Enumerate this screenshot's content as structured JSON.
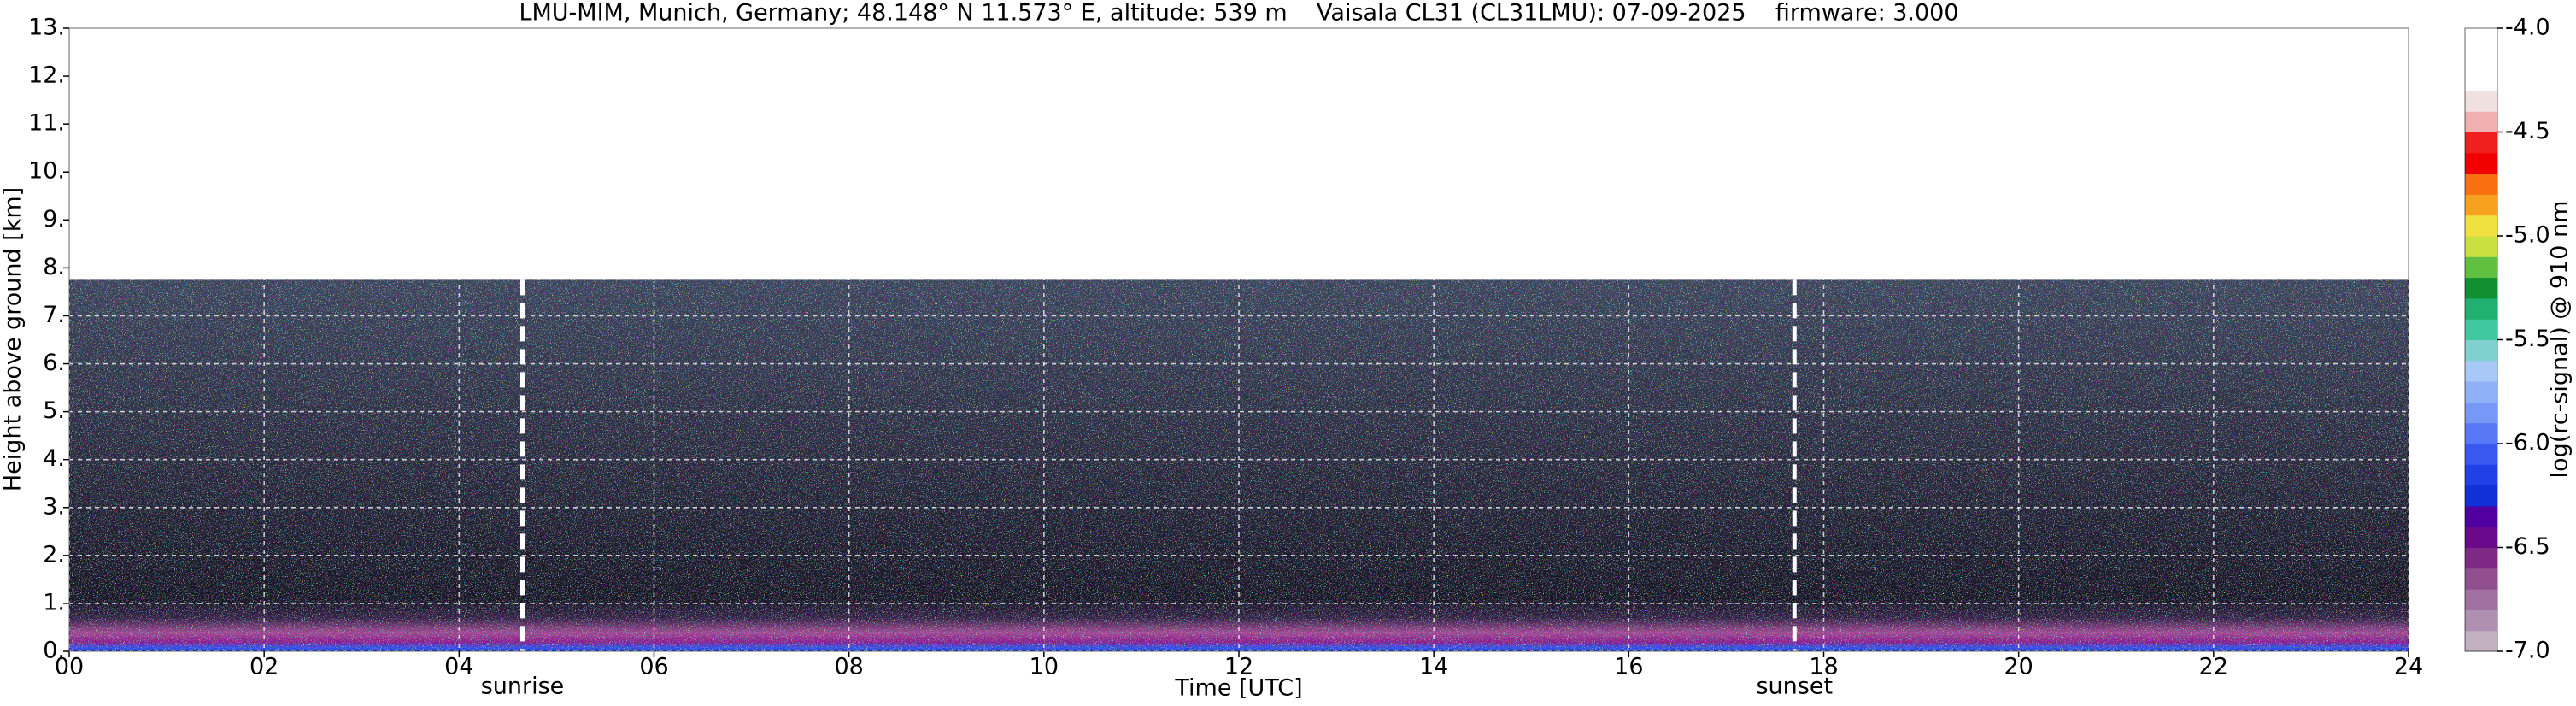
{
  "chart_data": {
    "type": "heatmap",
    "title": "LMU-MIM, Munich, Germany; 48.148° N 11.573° E, altitude: 539 m    Vaisala CL31 (CL31LMU): 07-09-2025    firmware: 3.000",
    "x_label": "Time [UTC]",
    "y_label": "Height above ground [km]",
    "xlim": [
      0,
      24
    ],
    "xticks": [
      {
        "value": 0,
        "label": "00"
      },
      {
        "value": 2,
        "label": "02"
      },
      {
        "value": 4,
        "label": "04"
      },
      {
        "value": 6,
        "label": "06"
      },
      {
        "value": 8,
        "label": "08"
      },
      {
        "value": 10,
        "label": "10"
      },
      {
        "value": 12,
        "label": "12"
      },
      {
        "value": 14,
        "label": "14"
      },
      {
        "value": 16,
        "label": "16"
      },
      {
        "value": 18,
        "label": "18"
      },
      {
        "value": 20,
        "label": "20"
      },
      {
        "value": 22,
        "label": "22"
      },
      {
        "value": 24,
        "label": "24"
      }
    ],
    "ylim": [
      0,
      13
    ],
    "yticks": [
      {
        "value": 0,
        "label": "0."
      },
      {
        "value": 1,
        "label": "1."
      },
      {
        "value": 2,
        "label": "2."
      },
      {
        "value": 3,
        "label": "3."
      },
      {
        "value": 4,
        "label": "4."
      },
      {
        "value": 5,
        "label": "5."
      },
      {
        "value": 6,
        "label": "6."
      },
      {
        "value": 7,
        "label": "7."
      },
      {
        "value": 8,
        "label": "8."
      },
      {
        "value": 9,
        "label": "9."
      },
      {
        "value": 10,
        "label": "10."
      },
      {
        "value": 11,
        "label": "11."
      },
      {
        "value": 12,
        "label": "12."
      },
      {
        "value": 13,
        "label": "13."
      }
    ],
    "grid": true,
    "max_range": 7.75,
    "annotations": [
      {
        "label": "sunrise",
        "x": 4.65
      },
      {
        "label": "sunset",
        "x": 17.7
      }
    ],
    "colorbar": {
      "label": "log(rc-signal) @ 910 nm",
      "lim": [
        -7,
        -4
      ],
      "ticks": [
        {
          "value": -7,
          "label": "-7.0"
        },
        {
          "value": -6.5,
          "label": "-6.5"
        },
        {
          "value": -6,
          "label": "-6.0"
        },
        {
          "value": -5.5,
          "label": "-5.5"
        },
        {
          "value": -5,
          "label": "-5.0"
        },
        {
          "value": -4.5,
          "label": "-4.5"
        },
        {
          "value": -4,
          "label": "-4.0"
        }
      ],
      "colors": [
        "#c0b0c0",
        "#b090b0",
        "#a070a0",
        "#905090",
        "#7e2a84",
        "#6a0a8a",
        "#5000a0",
        "#1030d8",
        "#2040e8",
        "#3858f0",
        "#5878f8",
        "#7898f8",
        "#90b0f8",
        "#a8c8f8",
        "#80d0d0",
        "#40c8a0",
        "#20b070",
        "#109030",
        "#60c040",
        "#c8e040",
        "#f0e040",
        "#f8a020",
        "#f87010",
        "#f00000",
        "#f02020",
        "#f0b0b0",
        "#f0e0e0",
        "#ffffff",
        "#ffffff",
        "#ffffff"
      ]
    }
  }
}
